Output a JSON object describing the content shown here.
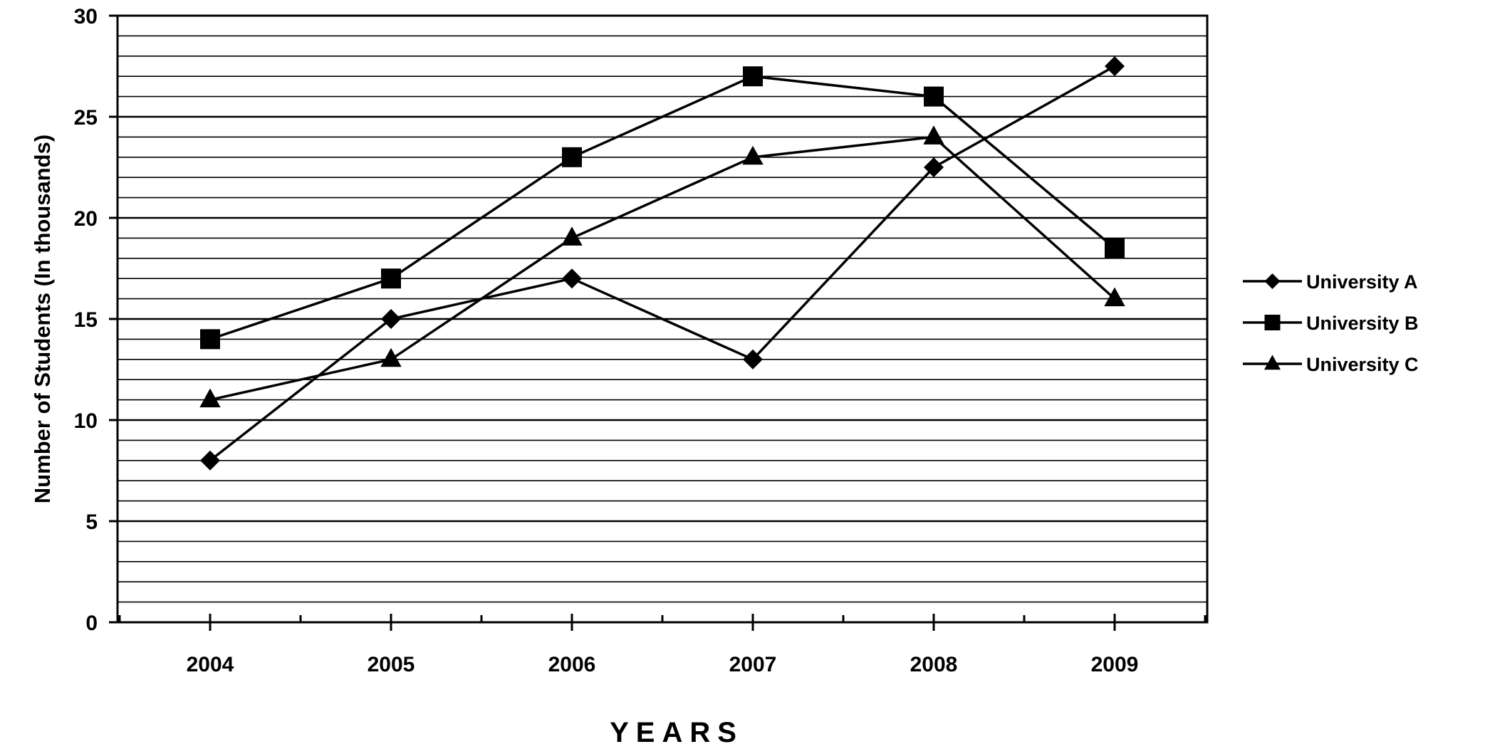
{
  "chart_data": {
    "type": "line",
    "title": "",
    "xlabel": "YEARS",
    "ylabel": "Number of Students (In thousands)",
    "categories": [
      "2004",
      "2005",
      "2006",
      "2007",
      "2008",
      "2009"
    ],
    "ylim": [
      0,
      30
    ],
    "yticks": [
      "0",
      "5",
      "10",
      "15",
      "20",
      "25",
      "30"
    ],
    "grid": true,
    "legend_position": "right",
    "series": [
      {
        "name": "University A",
        "marker": "diamond",
        "values": [
          8,
          15,
          17,
          13,
          22.5,
          27.5
        ]
      },
      {
        "name": "University B",
        "marker": "square",
        "values": [
          14,
          17,
          23,
          27,
          26,
          18.5
        ]
      },
      {
        "name": "University C",
        "marker": "triangle",
        "values": [
          11,
          13,
          19,
          23,
          24,
          16
        ]
      }
    ],
    "colors": {
      "line": "#000000",
      "background": "#ffffff"
    }
  }
}
